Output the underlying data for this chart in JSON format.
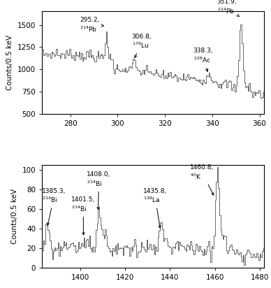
{
  "top_panel": {
    "xlim": [
      268,
      362
    ],
    "ylim": [
      500,
      1650
    ],
    "yticks": [
      500,
      750,
      1000,
      1250,
      1500
    ],
    "xticks": [
      280,
      300,
      320,
      340,
      360
    ],
    "ylabel": "Counts/0.5 keV"
  },
  "bottom_panel": {
    "xlim": [
      1383,
      1482
    ],
    "ylim": [
      0,
      105
    ],
    "yticks": [
      0,
      20,
      40,
      60,
      80,
      100
    ],
    "xticks": [
      1400,
      1420,
      1440,
      1460,
      1480
    ],
    "ylabel": "Counts/0.5 keV"
  },
  "line_color": "#404040",
  "annotation_fontsize": 6.5,
  "axis_fontsize": 7.5
}
